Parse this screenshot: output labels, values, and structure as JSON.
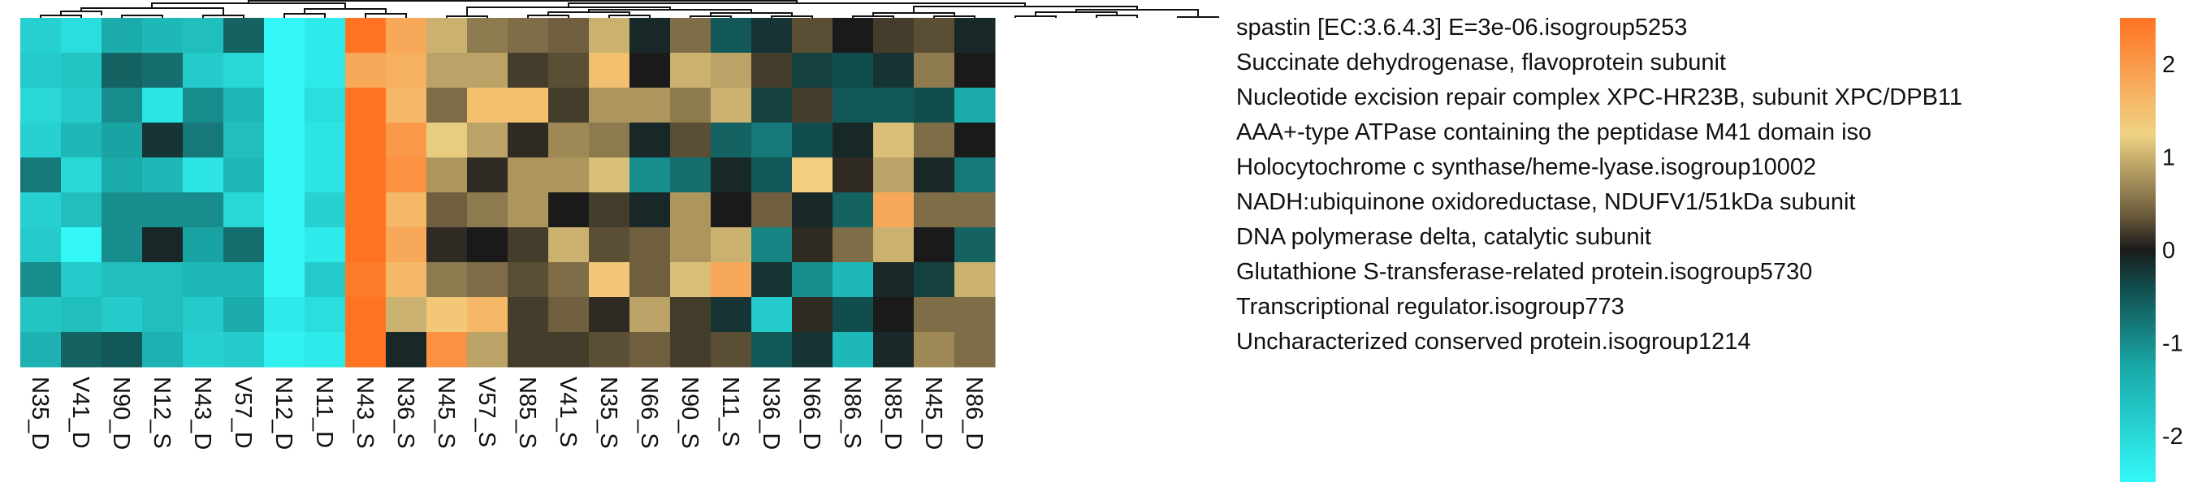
{
  "chart_data": {
    "type": "heatmap",
    "columns": [
      "N35_D",
      "V41_D",
      "N90_D",
      "N12_S",
      "N43_D",
      "V57_D",
      "N12_D",
      "N11_D",
      "N43_S",
      "N36_S",
      "N45_S",
      "V57_S",
      "N85_S",
      "V41_S",
      "N35_S",
      "N66_S",
      "N90_S",
      "N11_S",
      "N36_D",
      "N66_D",
      "N86_S",
      "N85_D",
      "N45_D",
      "N86_D"
    ],
    "rows": [
      "spastin [EC:3.6.4.3] E=3e-06.isogroup5253",
      "Succinate dehydrogenase, flavoprotein subunit",
      "Nucleotide excision repair complex XPC-HR23B, subunit XPC/DPB11",
      "AAA+-type ATPase containing the peptidase M41 domain  iso",
      "Holocytochrome c synthase/heme-lyase.isogroup10002",
      "NADH:ubiquinone oxidoreductase, NDUFV1/51kDa subunit",
      "DNA polymerase delta, catalytic subunit",
      "Glutathione S-transferase-related protein.isogroup5730",
      "Transcriptional regulator.isogroup773",
      "Uncharacterized conserved protein.isogroup1214"
    ],
    "values": [
      [
        -1.9,
        -2.1,
        -1.3,
        -1.5,
        -1.6,
        -0.6,
        -2.5,
        -2.3,
        2.5,
        1.8,
        1.0,
        0.6,
        0.5,
        0.4,
        1.0,
        -0.1,
        0.5,
        -0.5,
        -0.2,
        0.3,
        0.0,
        0.2,
        0.3,
        -0.1
      ],
      [
        -1.8,
        -1.7,
        -0.6,
        -0.7,
        -1.8,
        -2.0,
        -2.5,
        -2.3,
        1.8,
        1.7,
        0.9,
        0.9,
        0.2,
        0.3,
        1.5,
        0.0,
        1.0,
        0.9,
        0.2,
        -0.3,
        -0.4,
        -0.2,
        0.6,
        0.0
      ],
      [
        -2.0,
        -1.8,
        -1.0,
        -2.2,
        -1.0,
        -1.5,
        -2.5,
        -2.1,
        2.6,
        1.6,
        0.5,
        1.5,
        1.5,
        0.2,
        0.8,
        0.8,
        0.6,
        1.0,
        -0.3,
        0.2,
        -0.5,
        -0.5,
        -0.4,
        -1.3
      ],
      [
        -1.9,
        -1.5,
        -1.2,
        -0.2,
        -0.8,
        -1.6,
        -2.5,
        -2.2,
        2.6,
        2.0,
        1.2,
        0.9,
        0.1,
        0.7,
        0.6,
        -0.1,
        0.3,
        -0.6,
        -0.8,
        -0.4,
        -0.1,
        1.1,
        0.5,
        0.0
      ],
      [
        -0.8,
        -2.0,
        -1.3,
        -1.5,
        -2.2,
        -1.5,
        -2.5,
        -2.2,
        2.6,
        2.1,
        0.8,
        0.1,
        0.8,
        0.8,
        1.1,
        -1.0,
        -0.7,
        -0.1,
        -0.5,
        1.3,
        0.1,
        0.9,
        -0.1,
        -0.8
      ],
      [
        -1.9,
        -1.6,
        -1.0,
        -1.0,
        -1.0,
        -2.0,
        -2.5,
        -1.9,
        2.6,
        1.6,
        0.4,
        0.6,
        0.8,
        0.0,
        0.2,
        -0.1,
        0.8,
        0.0,
        0.4,
        -0.1,
        -0.6,
        1.8,
        0.5,
        0.5
      ],
      [
        -1.8,
        -2.5,
        -1.0,
        -0.1,
        -1.2,
        -0.7,
        -2.5,
        -2.3,
        2.6,
        1.8,
        0.1,
        0.0,
        0.2,
        1.0,
        0.3,
        0.4,
        0.8,
        1.0,
        -0.9,
        0.1,
        0.5,
        1.0,
        0.0,
        -0.6
      ],
      [
        -1.0,
        -1.8,
        -1.6,
        -1.6,
        -1.5,
        -1.5,
        -2.5,
        -1.8,
        2.4,
        1.6,
        0.6,
        0.5,
        0.3,
        0.5,
        1.4,
        0.4,
        1.1,
        1.8,
        -0.2,
        -1.0,
        -1.5,
        -0.1,
        -0.3,
        1.0
      ],
      [
        -1.7,
        -1.6,
        -1.8,
        -1.6,
        -1.8,
        -1.3,
        -2.3,
        -2.1,
        2.6,
        1.0,
        1.4,
        1.6,
        0.2,
        0.4,
        0.1,
        0.9,
        0.2,
        -0.2,
        -1.8,
        0.1,
        -0.4,
        0.0,
        0.5,
        0.5
      ],
      [
        -1.4,
        -0.6,
        -0.5,
        -1.4,
        -1.9,
        -1.8,
        -2.4,
        -2.3,
        2.6,
        -0.1,
        2.1,
        0.9,
        0.2,
        0.2,
        0.3,
        0.4,
        0.2,
        0.3,
        -0.5,
        -0.2,
        -1.5,
        -0.1,
        0.7,
        0.5
      ]
    ],
    "colorbar": {
      "min": -2.5,
      "max": 2.5,
      "ticks": [
        "-2",
        "-1",
        "0",
        "1",
        "2"
      ],
      "tick_values": [
        -2,
        -1,
        0,
        1,
        2
      ],
      "colors": [
        "#33f7f7",
        "#136b6b",
        "#1a1a1a",
        "#f0d383",
        "#ff7323"
      ]
    },
    "dendrogram": "top",
    "legend_placement": "right"
  }
}
